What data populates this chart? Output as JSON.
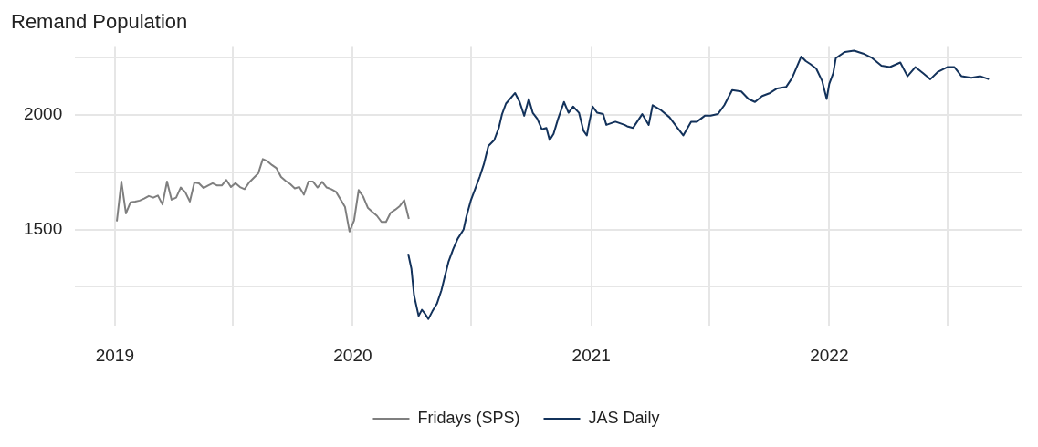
{
  "chart_data": {
    "type": "line",
    "title": "Remand Population",
    "xlim": [
      "2018-11-01",
      "2022-10-23"
    ],
    "ylim": [
      1080,
      2300
    ],
    "xticks": [
      "2019",
      {
        "value": "2019-07-01",
        "label": null
      },
      "2020",
      {
        "value": "2020-07-01",
        "label": null
      },
      "2021",
      {
        "value": "2021-07-01",
        "label": null
      },
      "2022",
      {
        "value": "2022-07-01",
        "label": null
      }
    ],
    "yticks": [
      {
        "value": 1250,
        "label": null
      },
      1500,
      {
        "value": 1750,
        "label": null
      },
      2000,
      {
        "value": 2250,
        "label": null
      }
    ],
    "grid": true,
    "legend": "bottom",
    "marker": "none",
    "line_style": "solid",
    "series": [
      {
        "name": "Fridays (SPS)",
        "color": "#7f7f7f",
        "x": [
          "2019-01-04",
          "2019-01-11",
          "2019-01-18",
          "2019-01-25",
          "2019-02-01",
          "2019-02-08",
          "2019-02-15",
          "2019-02-22",
          "2019-03-01",
          "2019-03-08",
          "2019-03-15",
          "2019-03-22",
          "2019-03-29",
          "2019-04-05",
          "2019-04-12",
          "2019-04-19",
          "2019-04-26",
          "2019-05-03",
          "2019-05-10",
          "2019-05-17",
          "2019-05-24",
          "2019-05-31",
          "2019-06-07",
          "2019-06-14",
          "2019-06-21",
          "2019-06-28",
          "2019-07-05",
          "2019-07-12",
          "2019-07-19",
          "2019-07-26",
          "2019-08-02",
          "2019-08-09",
          "2019-08-16",
          "2019-08-23",
          "2019-08-30",
          "2019-09-06",
          "2019-09-13",
          "2019-09-20",
          "2019-09-27",
          "2019-10-04",
          "2019-10-11",
          "2019-10-18",
          "2019-10-25",
          "2019-11-01",
          "2019-11-08",
          "2019-11-15",
          "2019-11-22",
          "2019-11-29",
          "2019-12-06",
          "2019-12-13",
          "2019-12-20",
          "2019-12-27",
          "2020-01-03",
          "2020-01-10",
          "2020-01-17",
          "2020-01-24",
          "2020-01-31",
          "2020-02-07",
          "2020-02-14",
          "2020-02-21",
          "2020-02-28",
          "2020-03-06",
          "2020-03-13",
          "2020-03-20",
          "2020-03-27"
        ],
        "values": [
          1536,
          1709,
          1570,
          1619,
          1622,
          1626,
          1635,
          1646,
          1639,
          1648,
          1609,
          1709,
          1630,
          1639,
          1683,
          1663,
          1622,
          1705,
          1701,
          1681,
          1692,
          1702,
          1692,
          1692,
          1716,
          1685,
          1702,
          1685,
          1676,
          1705,
          1725,
          1745,
          1807,
          1798,
          1781,
          1767,
          1729,
          1712,
          1698,
          1679,
          1685,
          1652,
          1709,
          1709,
          1683,
          1708,
          1683,
          1676,
          1665,
          1632,
          1599,
          1491,
          1540,
          1672,
          1643,
          1595,
          1577,
          1560,
          1533,
          1533,
          1573,
          1586,
          1602,
          1628,
          1546
        ]
      },
      {
        "name": "JAS Daily",
        "color": "#13325b",
        "x": [
          "2020-03-26",
          "2020-03-31",
          "2020-04-04",
          "2020-04-11",
          "2020-04-16",
          "2020-04-20",
          "2020-04-26",
          "2020-05-02",
          "2020-05-09",
          "2020-05-16",
          "2020-05-20",
          "2020-05-27",
          "2020-06-03",
          "2020-06-10",
          "2020-06-19",
          "2020-06-23",
          "2020-06-30",
          "2020-07-07",
          "2020-07-14",
          "2020-07-20",
          "2020-07-27",
          "2020-08-05",
          "2020-08-12",
          "2020-08-17",
          "2020-08-23",
          "2020-09-06",
          "2020-09-13",
          "2020-09-20",
          "2020-09-27",
          "2020-10-03",
          "2020-10-10",
          "2020-10-17",
          "2020-10-24",
          "2020-10-29",
          "2020-11-04",
          "2020-11-11",
          "2020-11-20",
          "2020-11-27",
          "2020-12-04",
          "2020-12-13",
          "2020-12-20",
          "2020-12-25",
          "2020-12-29",
          "2021-01-03",
          "2021-01-10",
          "2021-01-19",
          "2021-01-24",
          "2021-02-07",
          "2021-02-21",
          "2021-02-25",
          "2021-03-06",
          "2021-03-20",
          "2021-03-30",
          "2021-04-05",
          "2021-04-17",
          "2021-05-01",
          "2021-05-13",
          "2021-05-22",
          "2021-06-03",
          "2021-06-12",
          "2021-06-24",
          "2021-07-03",
          "2021-07-14",
          "2021-07-24",
          "2021-08-05",
          "2021-08-19",
          "2021-08-30",
          "2021-09-09",
          "2021-09-20",
          "2021-10-02",
          "2021-10-13",
          "2021-10-27",
          "2021-11-05",
          "2021-11-19",
          "2021-11-26",
          "2021-12-03",
          "2021-12-12",
          "2021-12-21",
          "2021-12-28",
          "2022-01-01",
          "2022-01-07",
          "2022-01-11",
          "2022-01-25",
          "2022-02-08",
          "2022-02-22",
          "2022-03-08",
          "2022-03-22",
          "2022-04-04",
          "2022-04-20",
          "2022-05-01",
          "2022-05-13",
          "2022-05-25",
          "2022-06-05",
          "2022-06-17",
          "2022-07-01",
          "2022-07-12",
          "2022-07-23",
          "2022-08-07",
          "2022-08-21",
          "2022-09-03"
        ],
        "values": [
          1394,
          1328,
          1213,
          1123,
          1150,
          1136,
          1110,
          1143,
          1176,
          1235,
          1282,
          1361,
          1414,
          1460,
          1500,
          1553,
          1626,
          1679,
          1732,
          1784,
          1864,
          1890,
          1943,
          2003,
          2049,
          2095,
          2056,
          1996,
          2069,
          2009,
          1983,
          1937,
          1943,
          1890,
          1917,
          1983,
          2056,
          2009,
          2036,
          2009,
          1930,
          1910,
          1970,
          2036,
          2009,
          2003,
          1956,
          1970,
          1956,
          1950,
          1943,
          2003,
          1956,
          2042,
          2022,
          1989,
          1943,
          1910,
          1970,
          1970,
          1996,
          1996,
          2003,
          2042,
          2108,
          2102,
          2069,
          2056,
          2082,
          2095,
          2115,
          2122,
          2161,
          2254,
          2234,
          2221,
          2201,
          2148,
          2069,
          2135,
          2181,
          2247,
          2274,
          2280,
          2267,
          2247,
          2214,
          2208,
          2228,
          2168,
          2208,
          2181,
          2155,
          2188,
          2208,
          2208,
          2168,
          2161,
          2168,
          2155
        ]
      }
    ]
  }
}
